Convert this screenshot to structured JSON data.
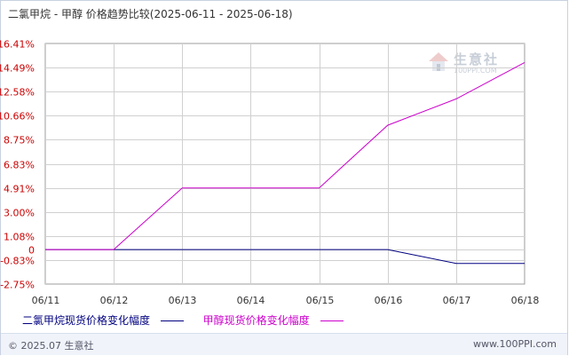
{
  "title": "二氯甲烷 - 甲醇 价格趋势比较(2025-06-11 - 2025-06-18)",
  "watermark": {
    "brand": "生意社",
    "url": "100PPI.COM"
  },
  "footer": {
    "copyright": "© 2025.07 生意社",
    "url": "www.100PPI.com"
  },
  "colors": {
    "background": "#ffffff",
    "grid": "#d0d0d0",
    "tick_label": "#cc0000",
    "series_1": "#000080",
    "series_2": "#cc00cc"
  },
  "chart_data": {
    "type": "line",
    "title": "二氯甲烷 - 甲醇 价格趋势比较(2025-06-11 - 2025-06-18)",
    "x": [
      "06/11",
      "06/12",
      "06/13",
      "06/14",
      "06/15",
      "06/16",
      "06/17",
      "06/18"
    ],
    "y_ticks": [
      {
        "label": "16.41%",
        "value": 16.41
      },
      {
        "label": "14.49%",
        "value": 14.49
      },
      {
        "label": "12.58%",
        "value": 12.58
      },
      {
        "label": "10.66%",
        "value": 10.66
      },
      {
        "label": "8.75%",
        "value": 8.75
      },
      {
        "label": "6.83%",
        "value": 6.83
      },
      {
        "label": "4.91%",
        "value": 4.91
      },
      {
        "label": "3.00%",
        "value": 3.0
      },
      {
        "label": "1.08%",
        "value": 1.08
      },
      {
        "label": "0",
        "value": 0
      },
      {
        "label": "-0.83%",
        "value": -0.83
      },
      {
        "label": "-2.75%",
        "value": -2.75
      }
    ],
    "ylim": [
      -2.75,
      16.41
    ],
    "grid": true,
    "legend_position": "bottom",
    "series": [
      {
        "name": "二氯甲烷现货价格变化幅度",
        "color": "#000080",
        "values": [
          0,
          0,
          0,
          0,
          0,
          0,
          -1.1,
          -1.1
        ]
      },
      {
        "name": "甲醇现货价格变化幅度",
        "color": "#cc00cc",
        "values": [
          0,
          0,
          4.91,
          4.91,
          4.91,
          9.9,
          12.0,
          14.9
        ]
      }
    ]
  }
}
